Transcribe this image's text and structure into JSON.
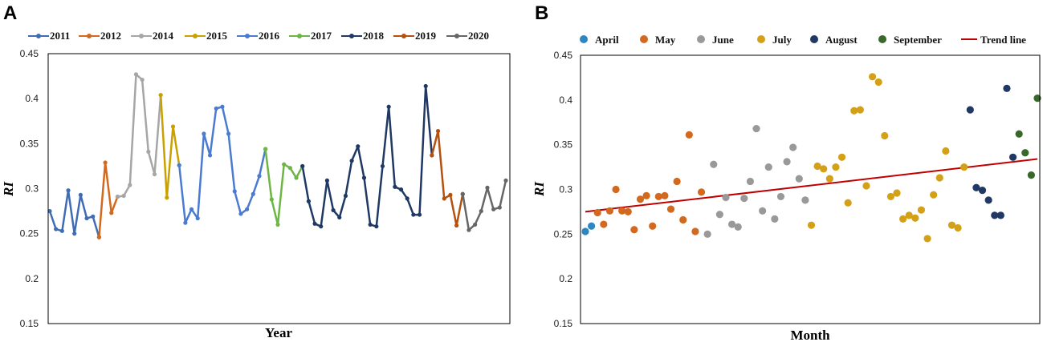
{
  "panels": {
    "a": "A",
    "b": "B"
  },
  "chart_data": [
    {
      "type": "line",
      "panel": "A",
      "xlabel": "Year",
      "ylabel": "RI",
      "ylim": [
        0.15,
        0.45
      ],
      "yticks": [
        "0.15",
        "0.2",
        "0.25",
        "0.3",
        "0.35",
        "0.4",
        "0.45"
      ],
      "legend_position": "top",
      "series": [
        {
          "name": "2011",
          "color": "#3F6CB5",
          "start": 0,
          "values": [
            0.275,
            0.255,
            0.253,
            0.298,
            0.25,
            0.293,
            0.267,
            0.269,
            0.246
          ]
        },
        {
          "name": "2012",
          "color": "#D2691E",
          "start": 8,
          "values": [
            0.246,
            0.329,
            0.273,
            0.291
          ]
        },
        {
          "name": "2014",
          "color": "#A6A6A6",
          "start": 11,
          "values": [
            0.291,
            0.292,
            0.304,
            0.427,
            0.421,
            0.341,
            0.316,
            0.404
          ]
        },
        {
          "name": "2015",
          "color": "#C9A000",
          "start": 18,
          "values": [
            0.404,
            0.29,
            0.369,
            0.326
          ]
        },
        {
          "name": "2016",
          "color": "#4A7BD0",
          "start": 21,
          "values": [
            0.326,
            0.262,
            0.277,
            0.267,
            0.361,
            0.337,
            0.389,
            0.391,
            0.361,
            0.297,
            0.272,
            0.277,
            0.294,
            0.314,
            0.344
          ]
        },
        {
          "name": "2017",
          "color": "#6DB544",
          "start": 35,
          "values": [
            0.344,
            0.288,
            0.26,
            0.327,
            0.323,
            0.312,
            0.325
          ]
        },
        {
          "name": "2018",
          "color": "#1F3864",
          "start": 41,
          "values": [
            0.325,
            0.286,
            0.261,
            0.258,
            0.309,
            0.276,
            0.268,
            0.292,
            0.331,
            0.347,
            0.312,
            0.26,
            0.258,
            0.325,
            0.391,
            0.302,
            0.299,
            0.289,
            0.271,
            0.271,
            0.414,
            0.337
          ]
        },
        {
          "name": "2019",
          "color": "#B5500E",
          "start": 62,
          "values": [
            0.337,
            0.364,
            0.289,
            0.293,
            0.259,
            0.294
          ]
        },
        {
          "name": "2020",
          "color": "#666666",
          "start": 67,
          "values": [
            0.294,
            0.254,
            0.26,
            0.275,
            0.301,
            0.277,
            0.279,
            0.309
          ]
        }
      ]
    },
    {
      "type": "scatter",
      "panel": "B",
      "xlabel": "Month",
      "ylabel": "RI",
      "ylim": [
        0.15,
        0.45
      ],
      "yticks": [
        "0.15",
        "0.2",
        "0.25",
        "0.3",
        "0.35",
        "0.4",
        "0.45"
      ],
      "legend_position": "top",
      "trend": {
        "name": "Trend line",
        "color": "#C00000",
        "y_start": 0.275,
        "y_end": 0.334
      },
      "series": [
        {
          "name": "April",
          "color": "#2E86C1",
          "points": [
            [
              0,
              0.253
            ],
            [
              1,
              0.259
            ]
          ]
        },
        {
          "name": "May",
          "color": "#D2691E",
          "points": [
            [
              2,
              0.274
            ],
            [
              3,
              0.261
            ],
            [
              4,
              0.276
            ],
            [
              5,
              0.3
            ],
            [
              6,
              0.276
            ],
            [
              7,
              0.275
            ],
            [
              8,
              0.255
            ],
            [
              9,
              0.289
            ],
            [
              10,
              0.293
            ],
            [
              11,
              0.259
            ],
            [
              12,
              0.292
            ],
            [
              13,
              0.293
            ],
            [
              14,
              0.278
            ],
            [
              15,
              0.309
            ],
            [
              16,
              0.266
            ],
            [
              17,
              0.361
            ],
            [
              18,
              0.253
            ],
            [
              19,
              0.297
            ]
          ]
        },
        {
          "name": "June",
          "color": "#999999",
          "points": [
            [
              20,
              0.25
            ],
            [
              21,
              0.328
            ],
            [
              22,
              0.272
            ],
            [
              23,
              0.291
            ],
            [
              24,
              0.261
            ],
            [
              25,
              0.258
            ],
            [
              26,
              0.29
            ],
            [
              27,
              0.309
            ],
            [
              28,
              0.368
            ],
            [
              29,
              0.276
            ],
            [
              30,
              0.325
            ],
            [
              31,
              0.267
            ],
            [
              32,
              0.292
            ],
            [
              33,
              0.331
            ],
            [
              34,
              0.347
            ],
            [
              35,
              0.312
            ],
            [
              36,
              0.288
            ]
          ]
        },
        {
          "name": "July",
          "color": "#D4A017",
          "points": [
            [
              37,
              0.26
            ],
            [
              38,
              0.326
            ],
            [
              39,
              0.323
            ],
            [
              40,
              0.312
            ],
            [
              41,
              0.325
            ],
            [
              42,
              0.336
            ],
            [
              43,
              0.285
            ],
            [
              44,
              0.388
            ],
            [
              45,
              0.389
            ],
            [
              46,
              0.304
            ],
            [
              47,
              0.426
            ],
            [
              48,
              0.42
            ],
            [
              49,
              0.36
            ],
            [
              50,
              0.292
            ],
            [
              51,
              0.296
            ],
            [
              52,
              0.267
            ],
            [
              53,
              0.271
            ],
            [
              54,
              0.268
            ],
            [
              55,
              0.277
            ],
            [
              56,
              0.245
            ],
            [
              57,
              0.294
            ],
            [
              58,
              0.313
            ],
            [
              59,
              0.343
            ],
            [
              60,
              0.26
            ],
            [
              61,
              0.257
            ],
            [
              62,
              0.325
            ]
          ]
        },
        {
          "name": "August",
          "color": "#1F3864",
          "points": [
            [
              63,
              0.389
            ],
            [
              64,
              0.302
            ],
            [
              65,
              0.299
            ],
            [
              66,
              0.288
            ],
            [
              67,
              0.271
            ],
            [
              68,
              0.271
            ],
            [
              69,
              0.413
            ],
            [
              70,
              0.336
            ]
          ]
        },
        {
          "name": "September",
          "color": "#38692A",
          "points": [
            [
              71,
              0.362
            ],
            [
              72,
              0.341
            ],
            [
              73,
              0.316
            ],
            [
              74,
              0.402
            ]
          ]
        }
      ]
    }
  ]
}
